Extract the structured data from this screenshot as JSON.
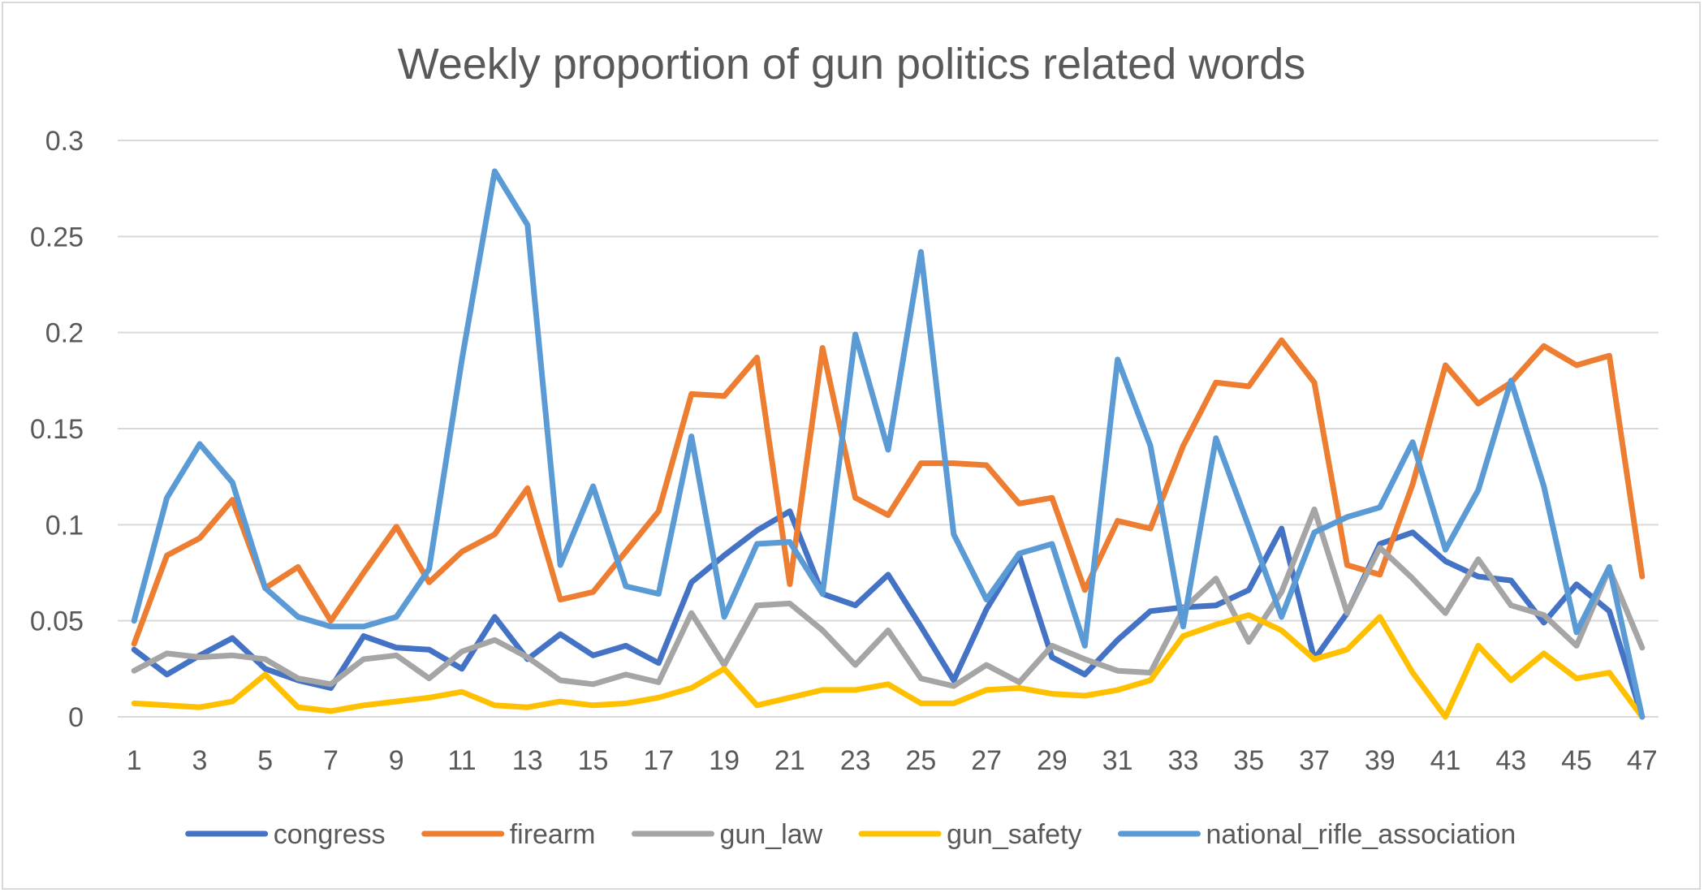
{
  "chart_data": {
    "type": "line",
    "title": "Weekly proportion of gun politics related words",
    "xlabel": "",
    "ylabel": "",
    "ylim": [
      0,
      0.3
    ],
    "yticks": [
      0,
      0.05,
      0.1,
      0.15,
      0.2,
      0.25,
      0.3
    ],
    "ytick_labels": [
      "0",
      "0.05",
      "0.1",
      "0.15",
      "0.2",
      "0.25",
      "0.3"
    ],
    "x": [
      1,
      2,
      3,
      4,
      5,
      6,
      7,
      8,
      9,
      10,
      11,
      12,
      13,
      14,
      15,
      16,
      17,
      18,
      19,
      20,
      21,
      22,
      23,
      24,
      25,
      26,
      27,
      28,
      29,
      30,
      31,
      32,
      33,
      34,
      35,
      36,
      37,
      38,
      39,
      40,
      41,
      42,
      43,
      44,
      45,
      46,
      47
    ],
    "xtick_labels": [
      "1",
      "3",
      "5",
      "7",
      "9",
      "11",
      "13",
      "15",
      "17",
      "19",
      "21",
      "23",
      "25",
      "27",
      "29",
      "31",
      "33",
      "35",
      "37",
      "39",
      "41",
      "43",
      "45",
      "47"
    ],
    "grid": "horizontal",
    "legend_position": "bottom",
    "series": [
      {
        "name": "congress",
        "color": "#4472C4",
        "values": [
          0.035,
          0.022,
          0.032,
          0.041,
          0.025,
          0.019,
          0.015,
          0.042,
          0.036,
          0.035,
          0.025,
          0.052,
          0.03,
          0.043,
          0.032,
          0.037,
          0.028,
          0.07,
          0.084,
          0.097,
          0.107,
          0.064,
          0.058,
          0.074,
          0.047,
          0.019,
          0.056,
          0.084,
          0.031,
          0.022,
          0.04,
          0.055,
          0.057,
          0.058,
          0.066,
          0.098,
          0.03,
          0.054,
          0.09,
          0.096,
          0.081,
          0.073,
          0.071,
          0.049,
          0.069,
          0.055,
          0.0
        ]
      },
      {
        "name": "firearm",
        "color": "#ED7D31",
        "values": [
          0.038,
          0.084,
          0.093,
          0.113,
          0.067,
          0.078,
          0.05,
          0.075,
          0.099,
          0.07,
          0.086,
          0.095,
          0.119,
          0.061,
          0.065,
          0.086,
          0.107,
          0.168,
          0.167,
          0.187,
          0.069,
          0.192,
          0.114,
          0.105,
          0.132,
          0.132,
          0.131,
          0.111,
          0.114,
          0.066,
          0.102,
          0.098,
          0.141,
          0.174,
          0.172,
          0.196,
          0.174,
          0.079,
          0.074,
          0.121,
          0.183,
          0.163,
          0.174,
          0.193,
          0.183,
          0.188,
          0.073
        ]
      },
      {
        "name": "gun_law",
        "color": "#A5A5A5",
        "values": [
          0.024,
          0.033,
          0.031,
          0.032,
          0.03,
          0.02,
          0.017,
          0.03,
          0.032,
          0.02,
          0.034,
          0.04,
          0.031,
          0.019,
          0.017,
          0.022,
          0.018,
          0.054,
          0.027,
          0.058,
          0.059,
          0.045,
          0.027,
          0.045,
          0.02,
          0.016,
          0.027,
          0.018,
          0.037,
          0.03,
          0.024,
          0.023,
          0.056,
          0.072,
          0.039,
          0.065,
          0.108,
          0.054,
          0.088,
          0.072,
          0.054,
          0.082,
          0.058,
          0.053,
          0.037,
          0.077,
          0.036
        ]
      },
      {
        "name": "gun_safety",
        "color": "#FFC000",
        "values": [
          0.007,
          0.006,
          0.005,
          0.008,
          0.022,
          0.005,
          0.003,
          0.006,
          0.008,
          0.01,
          0.013,
          0.006,
          0.005,
          0.008,
          0.006,
          0.007,
          0.01,
          0.015,
          0.025,
          0.006,
          0.01,
          0.014,
          0.014,
          0.017,
          0.007,
          0.007,
          0.014,
          0.015,
          0.012,
          0.011,
          0.014,
          0.019,
          0.042,
          0.048,
          0.053,
          0.045,
          0.03,
          0.035,
          0.052,
          0.023,
          0.0,
          0.037,
          0.019,
          0.033,
          0.02,
          0.023,
          0.0
        ]
      },
      {
        "name": "national_rifle_association",
        "color": "#5B9BD5",
        "values": [
          0.05,
          0.114,
          0.142,
          0.122,
          0.067,
          0.052,
          0.047,
          0.047,
          0.052,
          0.077,
          0.186,
          0.284,
          0.256,
          0.079,
          0.12,
          0.068,
          0.064,
          0.146,
          0.052,
          0.09,
          0.091,
          0.064,
          0.199,
          0.139,
          0.242,
          0.095,
          0.061,
          0.085,
          0.09,
          0.037,
          0.186,
          0.141,
          0.047,
          0.145,
          0.099,
          0.052,
          0.096,
          0.104,
          0.109,
          0.143,
          0.087,
          0.118,
          0.175,
          0.12,
          0.044,
          0.078,
          0.0
        ]
      }
    ]
  }
}
